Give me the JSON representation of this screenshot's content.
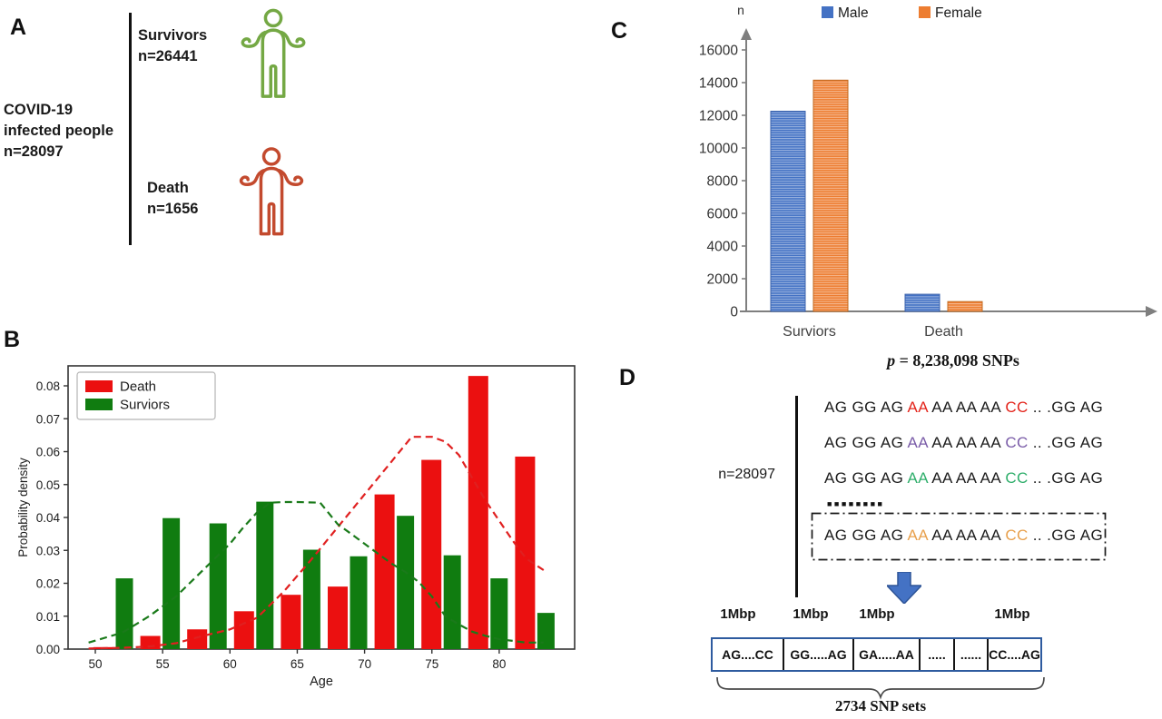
{
  "panelA": {
    "label": "A",
    "root_text": "COVID-19\ninfected people\nn=28097",
    "branches": [
      {
        "label": "Survivors",
        "n": "n=26441",
        "color": "#74A844"
      },
      {
        "label": "Death",
        "n": "n=1656",
        "color": "#C34A2E"
      }
    ]
  },
  "panelB": {
    "label": "B"
  },
  "panelC": {
    "label": "C",
    "p_var": "p",
    "p_rest": " = 8,238,098 SNPs"
  },
  "panelD": {
    "label": "D",
    "n_text": "n=28097",
    "dots": "■■■■■■■■",
    "sequences": [
      {
        "segments": [
          {
            "text": "AG GG AG ",
            "color": "#1c1c1c"
          },
          {
            "text": "AA",
            "color": "#E3241B"
          },
          {
            "text": " AA AA AA ",
            "color": "#1c1c1c"
          },
          {
            "text": "CC",
            "color": "#E3241B"
          },
          {
            "text": " .. .GG AG",
            "color": "#1c1c1c"
          }
        ]
      },
      {
        "segments": [
          {
            "text": "AG GG AG ",
            "color": "#1c1c1c"
          },
          {
            "text": "AA",
            "color": "#7A5CA8"
          },
          {
            "text": " AA AA AA ",
            "color": "#1c1c1c"
          },
          {
            "text": "CC",
            "color": "#7A5CA8"
          },
          {
            "text": " .. .GG AG",
            "color": "#1c1c1c"
          }
        ]
      },
      {
        "segments": [
          {
            "text": "AG GG AG ",
            "color": "#1c1c1c"
          },
          {
            "text": "AA",
            "color": "#2FAE6B"
          },
          {
            "text": " AA AA AA ",
            "color": "#1c1c1c"
          },
          {
            "text": "CC",
            "color": "#2FAE6B"
          },
          {
            "text": " .. .GG AG",
            "color": "#1c1c1c"
          }
        ]
      },
      {
        "segments": [
          {
            "text": "AG GG AG ",
            "color": "#1c1c1c"
          },
          {
            "text": "AA",
            "color": "#E8A04C"
          },
          {
            "text": " AA AA AA ",
            "color": "#1c1c1c"
          },
          {
            "text": "CC",
            "color": "#E8A04C"
          },
          {
            "text": " .. .GG AG",
            "color": "#1c1c1c"
          }
        ]
      }
    ],
    "mbp_labels": [
      "1Mbp",
      "1Mbp",
      "1Mbp",
      "1Mbp"
    ],
    "blocks": [
      "AG....CC",
      "GG.....AG",
      "GA.....AA",
      ".....",
      "......",
      "CC....AG"
    ],
    "snp_sets_text": "2734 SNP sets"
  },
  "chart_data": [
    {
      "type": "bar",
      "panel": "B",
      "title": "",
      "xlabel": "Age",
      "ylabel": "Probability density",
      "xlim": [
        48,
        85.6
      ],
      "ylim": [
        0,
        0.0862
      ],
      "xticks": [
        50,
        55,
        60,
        65,
        70,
        75,
        80
      ],
      "yticks": [
        0.0,
        0.01,
        0.02,
        0.03,
        0.04,
        0.05,
        0.06,
        0.07,
        0.08
      ],
      "grid": false,
      "legend_position": "top-left",
      "pair_centers_age": [
        51.3,
        54.8,
        58.3,
        61.8,
        65.3,
        68.8,
        72.3,
        75.8,
        79.3,
        82.8
      ],
      "series": [
        {
          "name": "Death",
          "color": "#EB1010",
          "values": [
            0.0006,
            0.004,
            0.006,
            0.0115,
            0.0165,
            0.019,
            0.047,
            0.0575,
            0.083,
            0.0585
          ]
        },
        {
          "name": "Surviors",
          "color": "#107C10",
          "values": [
            0.0215,
            0.0398,
            0.0382,
            0.0448,
            0.0302,
            0.0282,
            0.0405,
            0.0285,
            0.0215,
            0.011
          ]
        }
      ],
      "kde": [
        {
          "name": "Death KDE",
          "color": "#E02020",
          "x": [
            49.5,
            52,
            54,
            56,
            58,
            60,
            62,
            64,
            66,
            68,
            70,
            72,
            73.5,
            75,
            76,
            77,
            78,
            79,
            80,
            81,
            82,
            83.3
          ],
          "y": [
            0.0002,
            0.0004,
            0.0008,
            0.0018,
            0.004,
            0.006,
            0.0095,
            0.0175,
            0.027,
            0.037,
            0.047,
            0.057,
            0.0645,
            0.0645,
            0.063,
            0.059,
            0.052,
            0.045,
            0.039,
            0.033,
            0.0275,
            0.024
          ]
        },
        {
          "name": "Surviors KDE",
          "color": "#1A7A1A",
          "x": [
            49.5,
            52,
            54,
            56,
            58,
            60,
            61,
            62,
            63,
            64,
            65,
            66.7,
            68,
            69,
            70,
            71,
            72,
            73,
            74,
            75,
            76,
            77,
            78,
            79,
            80,
            81,
            82,
            83.3
          ],
          "y": [
            0.002,
            0.005,
            0.01,
            0.016,
            0.024,
            0.032,
            0.037,
            0.0415,
            0.0445,
            0.0447,
            0.0447,
            0.0445,
            0.038,
            0.035,
            0.032,
            0.029,
            0.026,
            0.0235,
            0.0205,
            0.016,
            0.01,
            0.0075,
            0.0053,
            0.004,
            0.003,
            0.0025,
            0.002,
            0.002
          ]
        }
      ]
    },
    {
      "type": "bar",
      "panel": "C",
      "ylabel": "n",
      "categories": [
        "Surviors",
        "Death"
      ],
      "yticks": [
        0,
        2000,
        4000,
        6000,
        8000,
        10000,
        12000,
        14000,
        16000
      ],
      "ylim": [
        0,
        17000
      ],
      "grid": false,
      "legend_position": "top",
      "series": [
        {
          "name": "Male",
          "color": "#4472C4",
          "edge": "#3A62AC",
          "values": [
            12250,
            1050
          ]
        },
        {
          "name": "Female",
          "color": "#ED7D31",
          "edge": "#C2691F",
          "values": [
            14150,
            600
          ]
        }
      ],
      "note": "p = 8,238,098 SNPs"
    }
  ]
}
